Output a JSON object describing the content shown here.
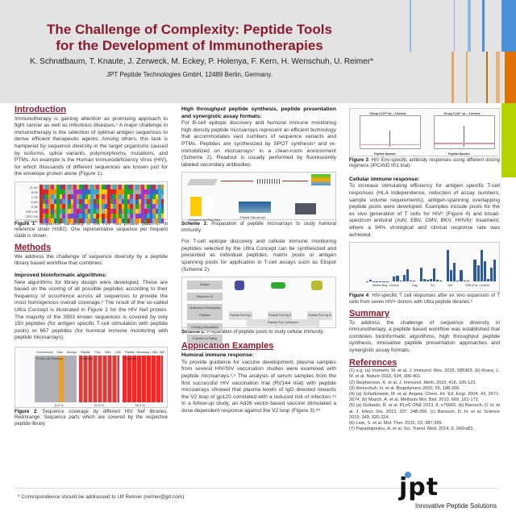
{
  "header": {
    "title_line1": "The Challenge of Complexity: Peptide Tools",
    "title_line2": "for the Development of Immunotherapies",
    "authors": "K. Schnatbaum, T. Knaute, J. Zerweck, M. Eckey, P. Holenya, F. Kern, H. Wenschuh, U. Reimer*",
    "affiliation": "JPT Peptide Technologies GmbH, 12489 Berlin, Germany."
  },
  "colors": {
    "accent": "#8b1a2b",
    "blue": "#4a90d9",
    "orange": "#e07000",
    "green": "#b6d300",
    "bar": "#2d5b9a"
  },
  "col1": {
    "intro_heading": "Introduction",
    "intro_text": "Immunotherapy is gaining attention as promising approach to fight cancer as well as infectious diseases.¹ A major challenge in immunotherapy is the selection of optimal antigen sequences to derive efficient therapeutic agents. Among others, this task is hampered by sequence diversity in the target organisms caused by isoforms, splice variants, polymorphisms, mutations, and PTMs. An example is the Human Immunodeficiency Virus (HIV), for which thousands of different sequences are known just for the envelope protein alone (Figure 1).",
    "fig1_labels": [
      "01.UG",
      "B.US",
      "C.ZA",
      "D.UG",
      "G.SE",
      "CRF1.HK",
      "CRF2.CM",
      "REF.HXB2"
    ],
    "fig1_cap_bold": "Figure 1",
    "fig1_cap": ": Sequence variability in the HIV Nef protein (aa20-67 in reference strain HXB2). One representative sequence per frequent clade is shown.",
    "methods_heading": "Methods",
    "methods_text": "We address the challenge of sequence diversity by a peptide library based workflow that combines:",
    "algo_heading": "Improved bioinformatic algorithms:",
    "algo_text": "New algorithms for library design were developed. These are based on the scoring of all possible peptides according to their frequency of occurrence across all sequences to provide the most homogenous overall coverage.² The result of the so-called Ultra Concept is illustrated in Figure 2 for the HIV Nef protein. The majority of the 3903 known sequences is covered by only 150 peptides (for antigen specific T-cell stimulation with peptide pools) or 667 peptides (for humoral immune monitoring with peptide microarrays).",
    "fig2_headers": [
      "Conventional Scan through Protein (46 Peptides)",
      "Peptide Pool Ultra (150 Peptides)",
      "Peptide Microarray Ultra (667 Peptides)"
    ],
    "fig2_clade_label": "Clade",
    "fig2_clades": [
      "A",
      "B",
      "C",
      "D",
      "G",
      "CRF1",
      "CRF2",
      "other"
    ],
    "fig2_coverage_label": "Coverage:",
    "fig2_coverage": [
      "8.5 %",
      "91.8 %",
      "96.3 %"
    ],
    "fig2_cap_bold": "Figure 2",
    "fig2_cap": ": Sequence coverage by different HIV Nef libraries. Red/orange: Sequence parts which are covered by the respective peptide library."
  },
  "col2": {
    "hts_heading": "High throughput peptide synthesis, peptide presentation and synergistic assay formats:",
    "hts_text": "For B-cell epitope discovery and humoral immune monitoring high density peptide microarrays represent an efficient technology that accommodates vast numbers of sequence variants and PTMs. Peptides are synthesized by SPOT synthesis³ and re-immobilized on microarrays⁴ in a clean-room environment (Scheme 2). Readout is usually performed by fluorescently labeled secondary antibodies.",
    "scheme1_labels": [
      "Membrane",
      "Functionalization",
      "Spatially addressed SPOT Synthesis",
      "Cutting of Peptide Spots and Cleavage from Membrane",
      "Chemoselective Immobilization",
      "Incubation, Readout, Data Analysis",
      "Visualized and Raw Data",
      "Peptide Microarrays"
    ],
    "scheme1_cap_bold": "Scheme 1:",
    "scheme1_cap": " Preparation of peptide microarrays to study humoral immunity.",
    "tcell_text": "For T-cell epitope discovery and cellular immune monitoring peptides selected by the Ultra Concept can be synthesized and presented as individual peptides, matrix pools or antigen spanning pools for application in T-cell assays such as Elispot (Scheme 2).",
    "scheme2_steps": [
      "Antigen",
      "Sequence ID",
      "Synthesis of Overlapping Peptides",
      "Pooling & Aliquotation",
      "Collection & Plating"
    ],
    "scheme2_antigens": [
      "Antigen I",
      "Antigen II",
      "Antigen III"
    ],
    "scheme2_pools": [
      "Peptide Pool Ag I",
      "Peptide Pool Ag II",
      "Peptide Pool Ag III"
    ],
    "scheme2_collection": "Peptide Pool Collections",
    "scheme2_collection_sub": "(all immunodominant Ag's of HIV, CMV, EBV, cancers, ...)",
    "scheme2_cap_bold": "Scheme 2:",
    "scheme2_cap": " Preparation of peptide pools to study cellular immunity.",
    "app_heading": "Application Examples",
    "humoral_heading": "Humoral immune response:",
    "humoral_text": "To provide guidance for vaccine development, plasma samples from several HIV/SIV vaccination studies were examined with peptide microarrays.²,⁵ The analysis of serum samples from the first successful HIV vaccination trial (RV144 trial) with peptide microarrays showed that plasma levels of IgG directed towards the V2 loop of gp120 correlated with a reduced risk of infection.⁵ᵃ In a follow-up study, an Ad26 vector-based vaccine stimulated a dose dependent response against the V2 loop (Figure 3).⁵ᵇ"
  },
  "col3": {
    "fig3_titles": [
      "Group 3 (10¹⁰ vp – 3 doses)",
      "Group 2 (10¹¹ vp – 3 doses)"
    ],
    "fig3_xlabel": "Peptide Number",
    "fig3_ylabel": "Fluorescence Intensity",
    "fig3_cap_bold": "Figure 3",
    "fig3_cap": ": HIV Env-specific antibody responses using different dosing regimens (IPCAVD 001 trial).",
    "cell_heading": "Cellular immune response:",
    "cell_text": "To increase stimulating efficiency for antigen specific T-cell responses (HLA independence, reduction of assay numbers, sample volume requirements), antigen-spanning overlapping peptide pools were developed. Examples include pools for the ex vivo generation of T cells for HIV⁶ (Figure 4) and broad-spectrum antiviral (AdV, EBV, CMV, BKV, HHV6)⁷ treatment, where a 94% virological and clinical response rate was achieved.",
    "fig4_cap_bold": "Figure 4",
    "fig4_cap": ": HIV-specific T cell responses after ex vivo expansion of T cells from seven HIV+ donors with Ultra peptide libraries.⁶",
    "summary_heading": "Summary",
    "summary_text": "To address the challenge of sequence diversity in immunotherapy, a peptide based workflow was established that combines bioinformatic algorithms, high throughput peptide synthesis, innovative peptide presentation approaches and synergistic assay formats.",
    "refs_heading": "References",
    "refs": [
      "(1) e.g. (a) Vormehr, M. et al. J. Immunol. Res. 2015, 595363. (b) Kranz, L. M. et al. Nature 2016, 534, 396-401.",
      "(2) Stephenson, K. et al. J. Immunol. Meth. 2015, 416, 105-123.",
      "(3) Wenschuh, H. et al. Biopolymers 2000, 55, 188-206.",
      "(4) (a) Schutkowski, M. et al. Angew. Chem. Int. Ed. Engl. 2004, 43, 2671-2674. (b) Masch, A. et al. Methods Mol. Biol. 2010, 669, 161-172.",
      "(5) (a) Gottardo, R. et al. PLoS ONE 2013, 8, e75665. (b) Barouch, D. H. et al. J. Infect. Dis. 2013, 207, 248-256. (c) Barouch, D. H. et al. Science 2015, 349, 320-324.",
      "(6) Lam, S. et al. Mol. Ther. 2015, 23, 387-395.",
      "(7) Papadopoulou, A. et al. Sci. Transl. Med. 2014, 6, 242ra83."
    ]
  },
  "footer": {
    "correspondence": "* Correspondence should be addressed to Ulf Reimer (reimer@jpt.com)",
    "logo_text": "jpt",
    "logo_tagline": "Innovative Peptide Solutions"
  },
  "chart_data": [
    {
      "type": "bar",
      "title": "Figure 4: HIV-specific T cell responses",
      "ylabel": "IFN-g SFC / 1x10^5 cells",
      "ylim": [
        0,
        1000
      ],
      "yticks": [
        0,
        200,
        400,
        600,
        800,
        1000
      ],
      "categories": [
        "Media (Neg. Control)",
        "Gag",
        "Pol",
        "Nef",
        "SEB (Pos. Control)"
      ],
      "series": [
        {
          "name": "Media",
          "values": [
            10,
            40,
            5,
            5,
            5,
            5,
            5
          ]
        },
        {
          "name": "Gag",
          "values": [
            140,
            160,
            30,
            190,
            350,
            30,
            20
          ]
        },
        {
          "name": "Pol",
          "values": [
            400,
            80,
            40,
            80,
            360,
            50,
            20
          ]
        },
        {
          "name": "Nef",
          "values": [
            880,
            320,
            520,
            20,
            330,
            20,
            20
          ]
        },
        {
          "name": "SEB",
          "values": [
            620,
            460,
            900,
            570,
            80,
            400,
            620
          ]
        }
      ]
    },
    {
      "type": "line",
      "title": "Figure 3: Group 3 (10^10 vp – 3 doses) and Group 2 (10^11 vp – 3 doses)",
      "xlabel": "Peptide Number",
      "ylabel": "Fluorescence Intensity"
    }
  ]
}
